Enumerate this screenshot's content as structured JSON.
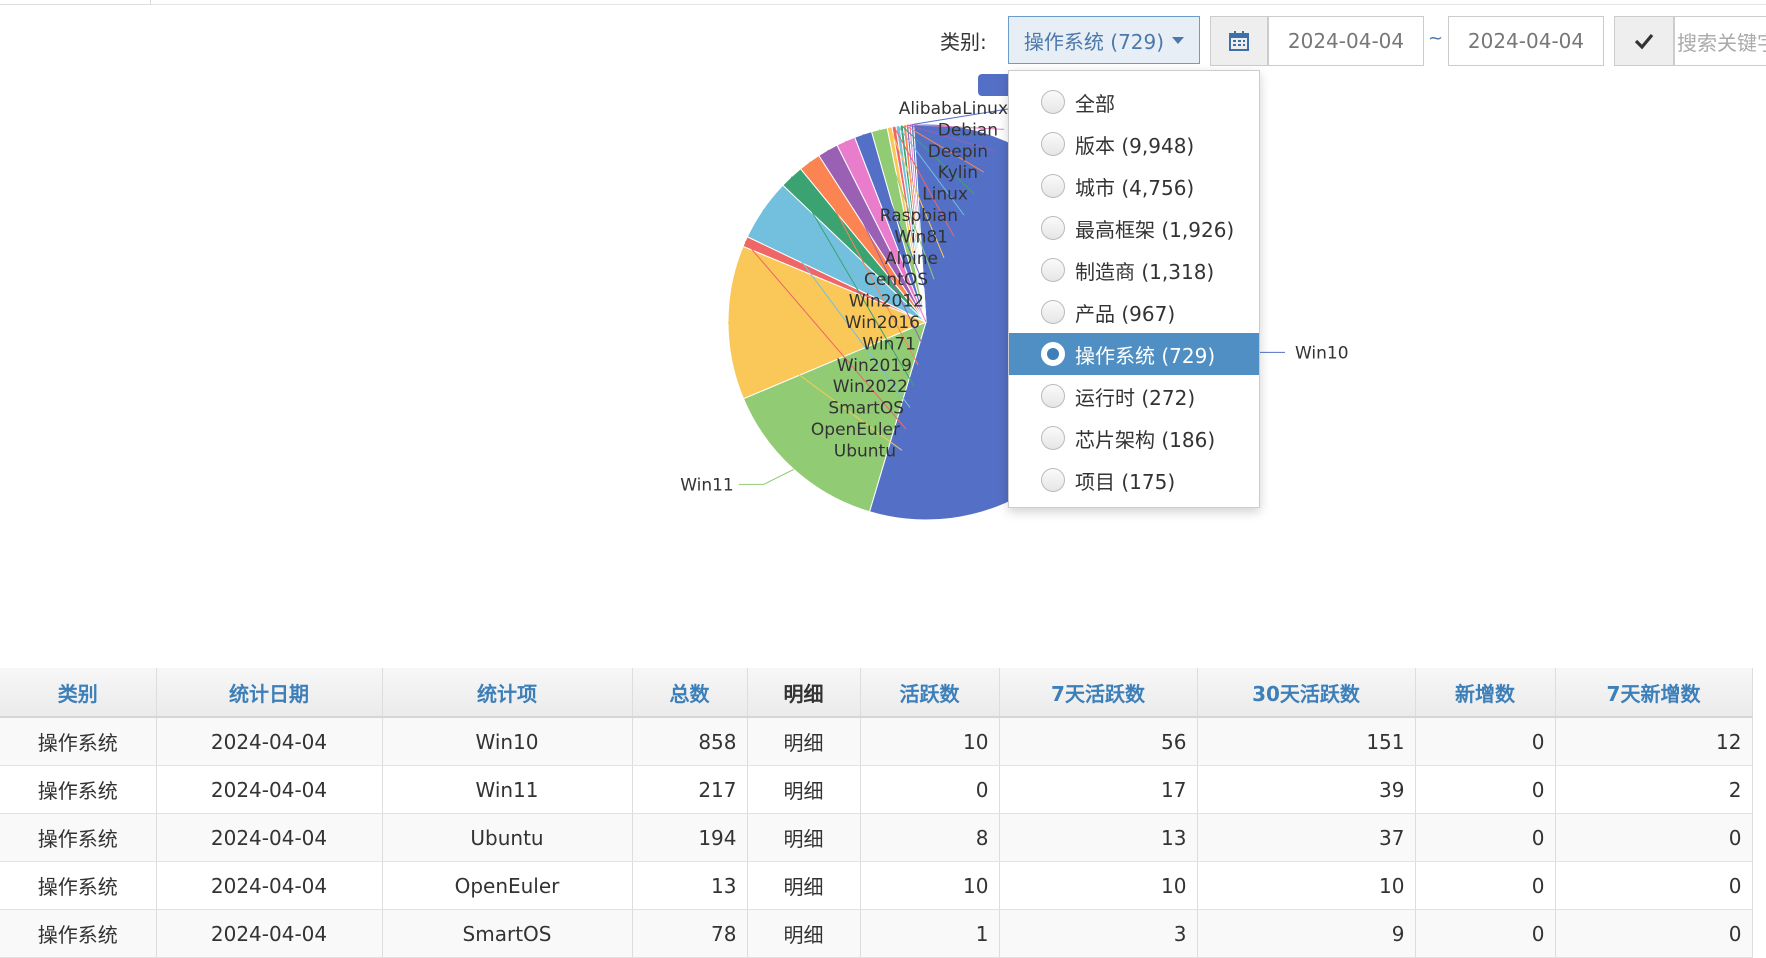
{
  "toolbar": {
    "category_label": "类别:",
    "category_selected": "操作系统 (729)",
    "date_from": "2024-04-04",
    "date_sep": "~",
    "date_to": "2024-04-04",
    "search_placeholder": "搜索关键字",
    "calendar_icon": "calendar-icon",
    "confirm_icon": "check-icon"
  },
  "dropdown": {
    "items": [
      {
        "label": "全部"
      },
      {
        "label": "版本 (9,948)"
      },
      {
        "label": "城市 (4,756)"
      },
      {
        "label": "最高框架 (1,926)"
      },
      {
        "label": "制造商 (1,318)"
      },
      {
        "label": "产品 (967)"
      },
      {
        "label": "操作系统 (729)",
        "selected": true
      },
      {
        "label": "运行时 (272)"
      },
      {
        "label": "芯片架构 (186)"
      },
      {
        "label": "项目 (175)"
      }
    ]
  },
  "chart_data": {
    "type": "pie",
    "series": [
      {
        "name": "Win10",
        "value": 858,
        "color": "#5470c6"
      },
      {
        "name": "Win11",
        "value": 217,
        "color": "#91cc75"
      },
      {
        "name": "Ubuntu",
        "value": 194,
        "color": "#fac858"
      },
      {
        "name": "OpenEuler",
        "value": 13,
        "color": "#ee6666"
      },
      {
        "name": "SmartOS",
        "value": 78,
        "color": "#73c0de"
      },
      {
        "name": "Win2022",
        "value": 30,
        "color": "#3ba272"
      },
      {
        "name": "Win2019",
        "value": 28,
        "color": "#fc8452"
      },
      {
        "name": "Win71",
        "value": 26,
        "color": "#9a60b4"
      },
      {
        "name": "Win2016",
        "value": 24,
        "color": "#ea7ccc"
      },
      {
        "name": "Win2012",
        "value": 22,
        "color": "#5470c6"
      },
      {
        "name": "CentOS",
        "value": 20,
        "color": "#91cc75"
      },
      {
        "name": "Alpine",
        "value": 6,
        "color": "#fac858"
      },
      {
        "name": "Win81",
        "value": 5,
        "color": "#ee6666"
      },
      {
        "name": "Raspbian",
        "value": 5,
        "color": "#73c0de"
      },
      {
        "name": "Linux",
        "value": 4,
        "color": "#3ba272"
      },
      {
        "name": "Kylin",
        "value": 4,
        "color": "#fc8452"
      },
      {
        "name": "Deepin",
        "value": 3,
        "color": "#9a60b4"
      },
      {
        "name": "Debian",
        "value": 3,
        "color": "#ea7ccc"
      },
      {
        "name": "AlibabaLinux",
        "value": 3,
        "color": "#5470c6"
      }
    ]
  },
  "table": {
    "headers": [
      "类别",
      "统计日期",
      "统计项",
      "总数",
      "明细",
      "活跃数",
      "7天活跃数",
      "30天活跃数",
      "新增数",
      "7天新增数"
    ],
    "rows": [
      [
        "操作系统",
        "2024-04-04",
        "Win10",
        "858",
        "明细",
        "10",
        "56",
        "151",
        "0",
        "12"
      ],
      [
        "操作系统",
        "2024-04-04",
        "Win11",
        "217",
        "明细",
        "0",
        "17",
        "39",
        "0",
        "2"
      ],
      [
        "操作系统",
        "2024-04-04",
        "Ubuntu",
        "194",
        "明细",
        "8",
        "13",
        "37",
        "0",
        "0"
      ],
      [
        "操作系统",
        "2024-04-04",
        "OpenEuler",
        "13",
        "明细",
        "10",
        "10",
        "10",
        "0",
        "0"
      ],
      [
        "操作系统",
        "2024-04-04",
        "SmartOS",
        "78",
        "明细",
        "1",
        "3",
        "9",
        "0",
        "0"
      ]
    ]
  }
}
